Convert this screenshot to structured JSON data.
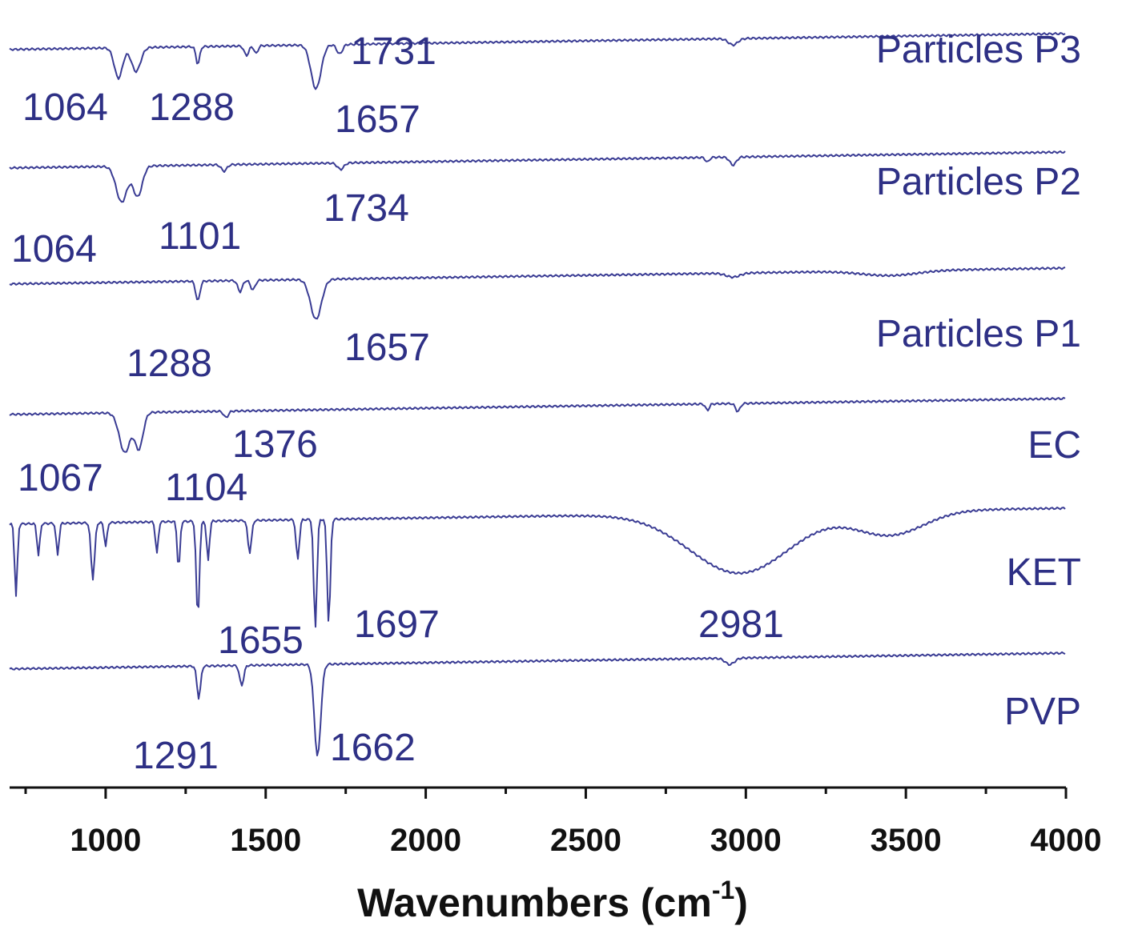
{
  "chart_data": {
    "type": "line",
    "title": "",
    "xlabel": "Wavenumbers (cm",
    "xlabel_superscript": "-1",
    "xlabel_close": ")",
    "ylabel": "",
    "xlim": [
      700,
      4000
    ],
    "x_ticks": [
      1000,
      1500,
      2000,
      2500,
      3000,
      3500,
      4000
    ],
    "x_tick_labels": [
      "1000",
      "1500",
      "2000",
      "2500",
      "3000",
      "3500",
      "4000"
    ],
    "line_color": "#3a3c94",
    "grid": false,
    "legend": "none",
    "series": [
      {
        "name": "Particles P3",
        "peaks": [
          {
            "x": 1064,
            "label": "1064"
          },
          {
            "x": 1288,
            "label": "1288"
          },
          {
            "x": 1657,
            "label": "1657"
          },
          {
            "x": 1731,
            "label": "1731"
          }
        ]
      },
      {
        "name": "Particles P2",
        "peaks": [
          {
            "x": 1064,
            "label": "1064"
          },
          {
            "x": 1101,
            "label": "1101"
          },
          {
            "x": 1734,
            "label": "1734"
          }
        ]
      },
      {
        "name": "Particles P1",
        "peaks": [
          {
            "x": 1288,
            "label": "1288"
          },
          {
            "x": 1657,
            "label": "1657"
          }
        ]
      },
      {
        "name": "EC",
        "peaks": [
          {
            "x": 1067,
            "label": "1067"
          },
          {
            "x": 1104,
            "label": "1104"
          },
          {
            "x": 1376,
            "label": "1376"
          }
        ]
      },
      {
        "name": "KET",
        "peaks": [
          {
            "x": 1655,
            "label": "1655"
          },
          {
            "x": 1697,
            "label": "1697"
          },
          {
            "x": 2981,
            "label": "2981"
          }
        ]
      },
      {
        "name": "PVP",
        "peaks": [
          {
            "x": 1291,
            "label": "1291"
          },
          {
            "x": 1662,
            "label": "1662"
          }
        ]
      }
    ]
  }
}
